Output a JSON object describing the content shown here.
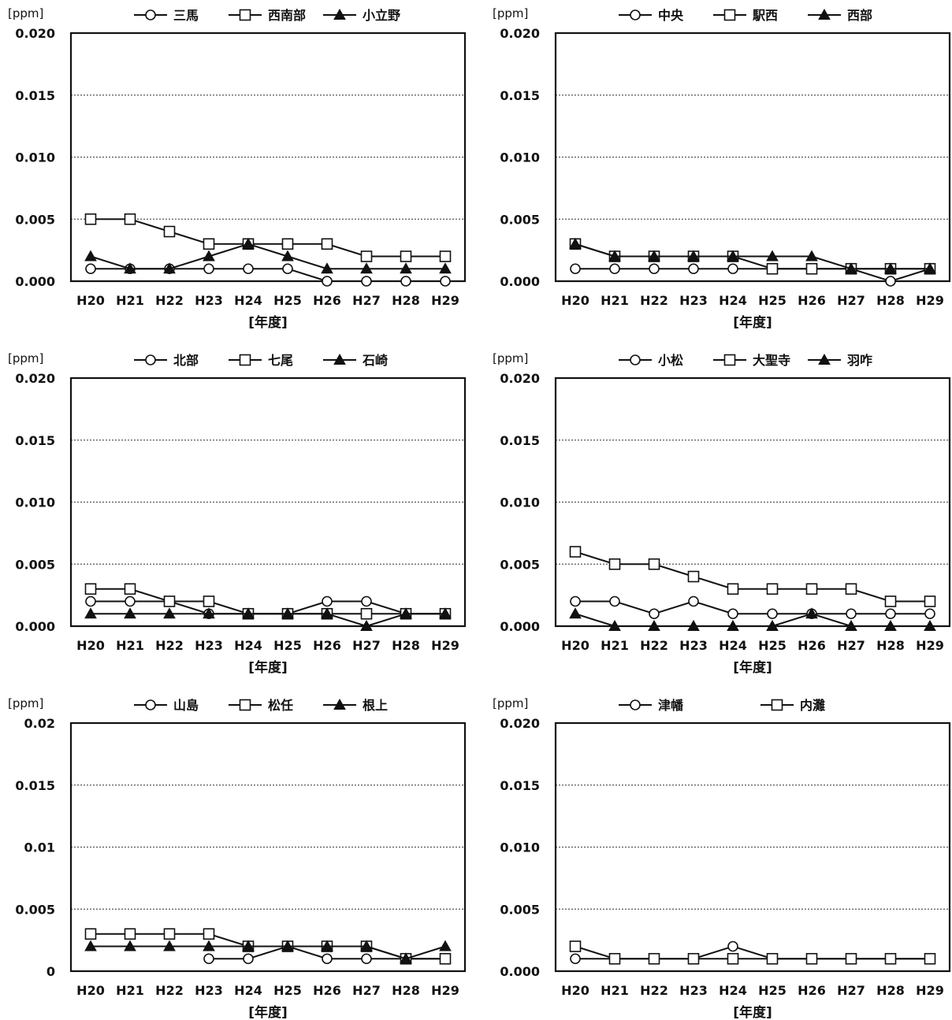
{
  "chart_data": [
    {
      "type": "line",
      "unit_label": "[ppm]",
      "ytick_labels": [
        "0.000",
        "0.005",
        "0.010",
        "0.015",
        "0.020"
      ],
      "ylim": [
        0,
        0.02
      ],
      "categories": [
        "H20",
        "H21",
        "H22",
        "H23",
        "H24",
        "H25",
        "H26",
        "H27",
        "H28",
        "H29"
      ],
      "xlabel": "[年度]",
      "legend_position": "top",
      "grid": "horizontal dotted",
      "series": [
        {
          "name": "三馬",
          "marker": "circle",
          "values": [
            0.001,
            0.001,
            0.001,
            0.001,
            0.001,
            0.001,
            0.0,
            0.0,
            0.0,
            0.0
          ]
        },
        {
          "name": "西南部",
          "marker": "square",
          "values": [
            0.005,
            0.005,
            0.004,
            0.003,
            0.003,
            0.003,
            0.003,
            0.002,
            0.002,
            0.002
          ]
        },
        {
          "name": "小立野",
          "marker": "triangle",
          "values": [
            0.002,
            0.001,
            0.001,
            0.002,
            0.003,
            0.002,
            0.001,
            0.001,
            0.001,
            0.001
          ]
        }
      ]
    },
    {
      "type": "line",
      "unit_label": "[ppm]",
      "ytick_labels": [
        "0.000",
        "0.005",
        "0.010",
        "0.015",
        "0.020"
      ],
      "ylim": [
        0,
        0.02
      ],
      "categories": [
        "H20",
        "H21",
        "H22",
        "H23",
        "H24",
        "H25",
        "H26",
        "H27",
        "H28",
        "H29"
      ],
      "xlabel": "[年度]",
      "legend_position": "top",
      "grid": "horizontal dotted",
      "series": [
        {
          "name": "中央",
          "marker": "circle",
          "values": [
            0.001,
            0.001,
            0.001,
            0.001,
            0.001,
            0.001,
            0.001,
            0.001,
            0.0,
            0.001
          ]
        },
        {
          "name": "駅西",
          "marker": "square",
          "values": [
            0.003,
            0.002,
            0.002,
            0.002,
            0.002,
            0.001,
            0.001,
            0.001,
            0.001,
            0.001
          ]
        },
        {
          "name": "西部",
          "marker": "triangle",
          "values": [
            0.003,
            0.002,
            0.002,
            0.002,
            0.002,
            0.002,
            0.002,
            0.001,
            0.001,
            0.001
          ]
        }
      ]
    },
    {
      "type": "line",
      "unit_label": "[ppm]",
      "ytick_labels": [
        "0.000",
        "0.005",
        "0.010",
        "0.015",
        "0.020"
      ],
      "ylim": [
        0,
        0.02
      ],
      "categories": [
        "H20",
        "H21",
        "H22",
        "H23",
        "H24",
        "H25",
        "H26",
        "H27",
        "H28",
        "H29"
      ],
      "xlabel": "[年度]",
      "legend_position": "top",
      "grid": "horizontal dotted",
      "series": [
        {
          "name": "北部",
          "marker": "circle",
          "values": [
            0.002,
            0.002,
            0.002,
            0.001,
            0.001,
            0.001,
            0.002,
            0.002,
            0.001,
            0.001
          ]
        },
        {
          "name": "七尾",
          "marker": "square",
          "values": [
            0.003,
            0.003,
            0.002,
            0.002,
            0.001,
            0.001,
            0.001,
            0.001,
            0.001,
            0.001
          ]
        },
        {
          "name": "石崎",
          "marker": "triangle",
          "values": [
            0.001,
            0.001,
            0.001,
            0.001,
            0.001,
            0.001,
            0.001,
            0.0,
            0.001,
            0.001
          ]
        }
      ]
    },
    {
      "type": "line",
      "unit_label": "[ppm]",
      "ytick_labels": [
        "0.000",
        "0.005",
        "0.010",
        "0.015",
        "0.020"
      ],
      "ylim": [
        0,
        0.02
      ],
      "categories": [
        "H20",
        "H21",
        "H22",
        "H23",
        "H24",
        "H25",
        "H26",
        "H27",
        "H28",
        "H29"
      ],
      "xlabel": "[年度]",
      "legend_position": "top",
      "grid": "horizontal dotted",
      "series": [
        {
          "name": "小松",
          "marker": "circle",
          "values": [
            0.002,
            0.002,
            0.001,
            0.002,
            0.001,
            0.001,
            0.001,
            0.001,
            0.001,
            0.001
          ]
        },
        {
          "name": "大聖寺",
          "marker": "square",
          "values": [
            0.006,
            0.005,
            0.005,
            0.004,
            0.003,
            0.003,
            0.003,
            0.003,
            0.002,
            0.002
          ]
        },
        {
          "name": "羽咋",
          "marker": "triangle",
          "values": [
            0.001,
            0.0,
            0.0,
            0.0,
            0.0,
            0.0,
            0.001,
            0.0,
            0.0,
            0.0
          ]
        }
      ]
    },
    {
      "type": "line",
      "unit_label": "[ppm]",
      "ytick_labels": [
        "0",
        "0.005",
        "0.01",
        "0.015",
        "0.02"
      ],
      "ylim": [
        0,
        0.02
      ],
      "categories": [
        "H20",
        "H21",
        "H22",
        "H23",
        "H24",
        "H25",
        "H26",
        "H27",
        "H28",
        "H29"
      ],
      "xlabel": "[年度]",
      "legend_position": "top",
      "grid": "horizontal dotted",
      "series": [
        {
          "name": "山島",
          "marker": "circle",
          "values": [
            null,
            null,
            null,
            0.001,
            0.001,
            0.002,
            0.001,
            0.001,
            0.001,
            0.001
          ]
        },
        {
          "name": "松任",
          "marker": "square",
          "values": [
            0.003,
            0.003,
            0.003,
            0.003,
            0.002,
            0.002,
            0.002,
            0.002,
            0.001,
            0.001
          ]
        },
        {
          "name": "根上",
          "marker": "triangle",
          "values": [
            0.002,
            0.002,
            0.002,
            0.002,
            0.002,
            0.002,
            0.002,
            0.002,
            0.001,
            0.002
          ]
        }
      ]
    },
    {
      "type": "line",
      "unit_label": "[ppm]",
      "ytick_labels": [
        "0.000",
        "0.005",
        "0.010",
        "0.015",
        "0.020"
      ],
      "ylim": [
        0,
        0.02
      ],
      "categories": [
        "H20",
        "H21",
        "H22",
        "H23",
        "H24",
        "H25",
        "H26",
        "H27",
        "H28",
        "H29"
      ],
      "xlabel": "[年度]",
      "legend_position": "top",
      "grid": "horizontal dotted",
      "series": [
        {
          "name": "津幡",
          "marker": "circle",
          "values": [
            0.001,
            0.001,
            0.001,
            0.001,
            0.002,
            0.001,
            0.001,
            0.001,
            0.001,
            0.001
          ]
        },
        {
          "name": "内灘",
          "marker": "square",
          "values": [
            0.002,
            0.001,
            0.001,
            0.001,
            0.001,
            0.001,
            0.001,
            0.001,
            0.001,
            0.001
          ]
        }
      ]
    }
  ]
}
